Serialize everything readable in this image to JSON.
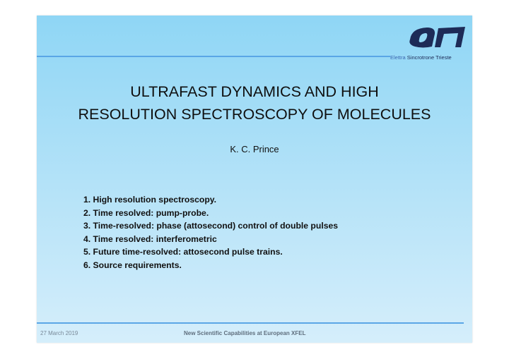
{
  "brand": {
    "logo_icon": "elettra-logo-icon",
    "name_part1": "Elettra",
    "name_part2": "Sincrotrone Trieste",
    "color_primary": "#1d2b57",
    "color_accent": "#3c68b1"
  },
  "title": {
    "line1": "ULTRAFAST DYNAMICS AND HIGH",
    "line2": "RESOLUTION SPECTROSCOPY OF MOLECULES"
  },
  "author": "K. C. Prince",
  "outline": [
    "1. High resolution spectroscopy.",
    "2. Time resolved: pump-probe.",
    "3. Time-resolved: phase (attosecond) control of double pulses",
    "4. Time resolved: interferometric",
    "5. Future time-resolved: attosecond pulse trains.",
    "6. Source requirements."
  ],
  "footer": {
    "date": "27 March 2019",
    "event": "New Scientific Capabilities at European XFEL"
  },
  "colors": {
    "background_top": "#8fd6f5",
    "background_bottom": "#d5eefb",
    "rule": "#5aa6e6"
  }
}
